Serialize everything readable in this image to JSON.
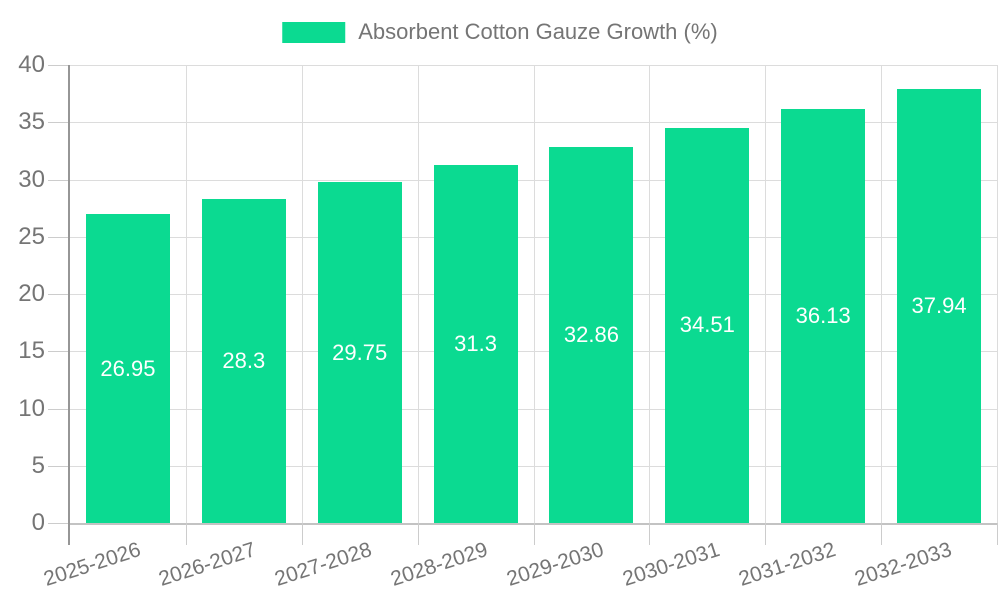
{
  "legend": {
    "label": "Absorbent Cotton Gauze Growth (%)"
  },
  "chart_data": {
    "type": "bar",
    "title": "",
    "xlabel": "",
    "ylabel": "",
    "categories": [
      "2025-2026",
      "2026-2027",
      "2027-2028",
      "2028-2029",
      "2029-2030",
      "2030-2031",
      "2031-2032",
      "2032-2033"
    ],
    "series": [
      {
        "name": "Absorbent Cotton Gauze Growth (%)",
        "values": [
          26.95,
          28.3,
          29.75,
          31.3,
          32.86,
          34.51,
          36.13,
          37.94
        ]
      }
    ],
    "ylim": [
      0,
      40
    ],
    "ytick_step": 5,
    "ytick_labels": [
      "0",
      "5",
      "10",
      "15",
      "20",
      "25",
      "30",
      "35",
      "40"
    ],
    "grid": true,
    "legend_position": "top",
    "value_labels_shown": true,
    "colors": {
      "bar": "#0bda91",
      "axis_text": "#757575",
      "value_label": "#ffffff"
    }
  }
}
